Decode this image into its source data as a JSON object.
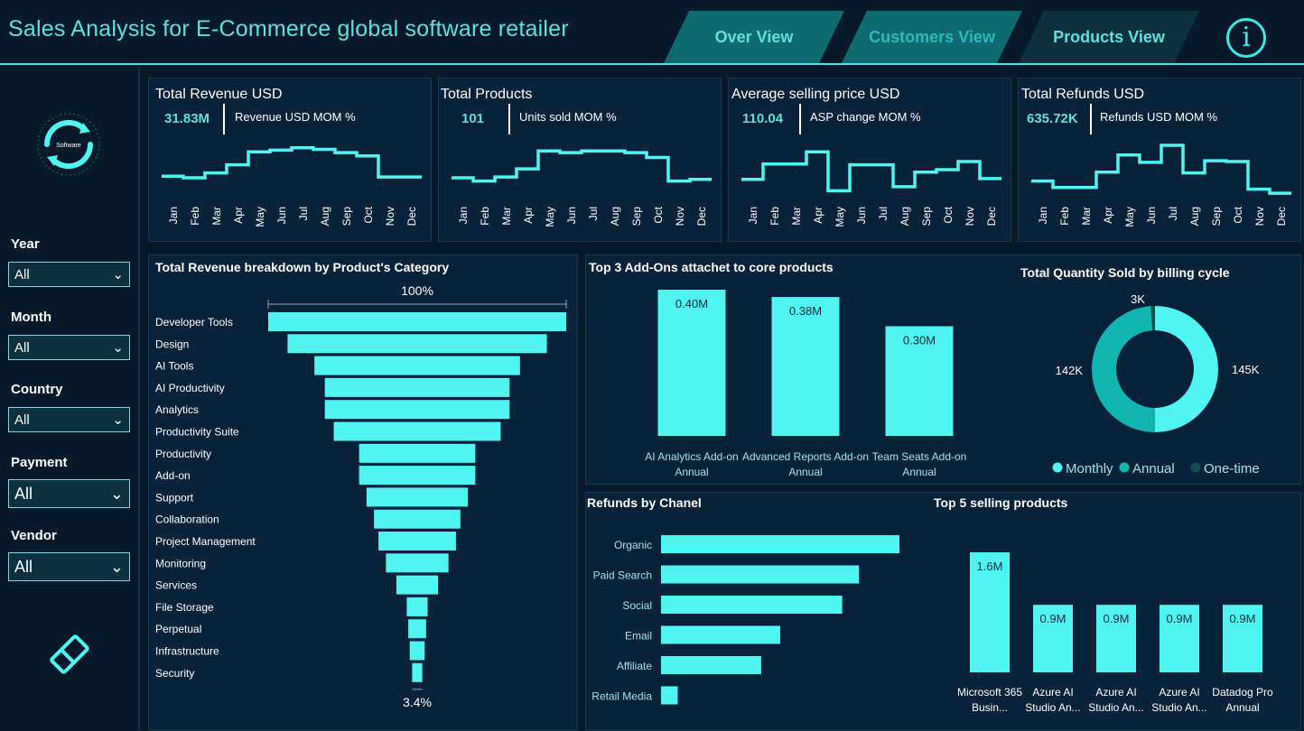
{
  "header": {
    "title": "Sales Analysis for E-Commerce global software retailer",
    "tabs": [
      {
        "label": "Over View"
      },
      {
        "label": "Customers View"
      },
      {
        "label": "Products View"
      }
    ],
    "info_glyph": "i"
  },
  "sidebar": {
    "logo_text": "Software",
    "filters": [
      {
        "label": "Year",
        "value": "All"
      },
      {
        "label": "Month",
        "value": "All"
      },
      {
        "label": "Country",
        "value": "All"
      },
      {
        "label": "Payment",
        "value": "All"
      },
      {
        "label": "Vendor",
        "value": "All"
      }
    ]
  },
  "colors": {
    "accent": "#4ff5f0",
    "accent_dark": "#12b6b0",
    "background": "#061a2c",
    "panel": "#08223a"
  },
  "chart_data": [
    {
      "type": "line",
      "id": "kpi_revenue",
      "title": "Total Revenue USD",
      "value": "31.83M",
      "subtitle": "Revenue USD MOM %",
      "x": [
        "Jan",
        "Feb",
        "Mar",
        "Apr",
        "May",
        "Jun",
        "Jul",
        "Aug",
        "Sep",
        "Oct",
        "Nov",
        "Dec"
      ],
      "values": [
        2.2,
        2.0,
        2.6,
        3.6,
        5.2,
        5.4,
        5.7,
        5.5,
        5.1,
        4.7,
        2.1,
        2.1
      ]
    },
    {
      "type": "line",
      "id": "kpi_products",
      "title": "Total Products",
      "value": "101",
      "subtitle": "Units sold MOM %",
      "x": [
        "Jan",
        "Feb",
        "Mar",
        "Apr",
        "May",
        "Jun",
        "Jul",
        "Aug",
        "Sep",
        "Oct",
        "Nov",
        "Dec"
      ],
      "values": [
        2.0,
        1.6,
        2.1,
        3.1,
        5.3,
        5.1,
        5.3,
        5.3,
        5.1,
        4.5,
        1.6,
        1.8
      ]
    },
    {
      "type": "line",
      "id": "kpi_asp",
      "title": "Average selling price USD",
      "value": "110.04",
      "subtitle": "ASP change MOM %",
      "x": [
        "Jan",
        "Feb",
        "Mar",
        "Apr",
        "May",
        "Jun",
        "Jul",
        "Aug",
        "Sep",
        "Oct",
        "Nov",
        "Dec"
      ],
      "values": [
        1.8,
        3.7,
        3.7,
        5.2,
        0.4,
        3.6,
        3.6,
        0.9,
        2.7,
        3.0,
        4.0,
        1.9
      ]
    },
    {
      "type": "line",
      "id": "kpi_refunds",
      "title": "Total Refunds USD",
      "value": "635.72K",
      "subtitle": "Refunds USD MOM %",
      "x": [
        "Jan",
        "Feb",
        "Mar",
        "Apr",
        "May",
        "Jun",
        "Jul",
        "Aug",
        "Sep",
        "Oct",
        "Nov",
        "Dec"
      ],
      "values": [
        1.6,
        0.8,
        0.8,
        2.7,
        4.8,
        3.9,
        6.0,
        2.6,
        4.1,
        4.0,
        0.6,
        0.1
      ]
    },
    {
      "type": "bar",
      "id": "funnel",
      "title": "Total Revenue breakdown by Product's Category",
      "orientation": "funnel",
      "top_label": "100%",
      "bottom_label": "3.4%",
      "categories": [
        "Developer Tools",
        "Design",
        "AI Tools",
        "AI Productivity",
        "Analytics",
        "Productivity Suite",
        "Productivity",
        "Add-on",
        "Support",
        "Collaboration",
        "Project Management",
        "Monitoring",
        "Services",
        "File Storage",
        "Perpetual",
        "Infrastructure",
        "Security"
      ],
      "values": [
        100,
        87,
        69,
        62,
        62,
        56,
        39,
        39,
        34,
        29,
        26,
        21,
        14,
        7,
        6,
        5,
        3.4
      ]
    },
    {
      "type": "bar",
      "id": "addons",
      "title": "Top 3 Add-Ons attachet to core products",
      "categories": [
        "AI Analytics Add-on Annual",
        "Advanced Reports Add-on Annual",
        "Team Seats Add-on Annual"
      ],
      "values": [
        0.4,
        0.38,
        0.3
      ],
      "labels": [
        "0.40M",
        "0.38M",
        "0.30M"
      ]
    },
    {
      "type": "pie",
      "id": "billing",
      "title": "Total Quantity Sold by billing cycle",
      "categories": [
        "Monthly",
        "Annual",
        "One-time"
      ],
      "values": [
        145,
        142,
        3
      ],
      "labels": [
        "145K",
        "142K",
        "3K"
      ]
    },
    {
      "type": "bar",
      "id": "refunds_channel",
      "title": "Refunds by Chanel",
      "orientation": "horizontal",
      "categories": [
        "Organic",
        "Paid Search",
        "Social",
        "Email",
        "Affiliate",
        "Retail Media"
      ],
      "values": [
        100,
        83,
        76,
        50,
        42,
        7
      ]
    },
    {
      "type": "bar",
      "id": "top5",
      "title": "Top 5 selling products",
      "categories": [
        "Microsoft 365 Busin...",
        "Azure AI Studio An...",
        "Azure AI Studio An...",
        "Azure AI Studio An...",
        "Datadog Pro Annual"
      ],
      "values": [
        1.6,
        0.9,
        0.9,
        0.9,
        0.9
      ],
      "labels": [
        "1.6M",
        "0.9M",
        "0.9M",
        "0.9M",
        "0.9M"
      ]
    }
  ]
}
